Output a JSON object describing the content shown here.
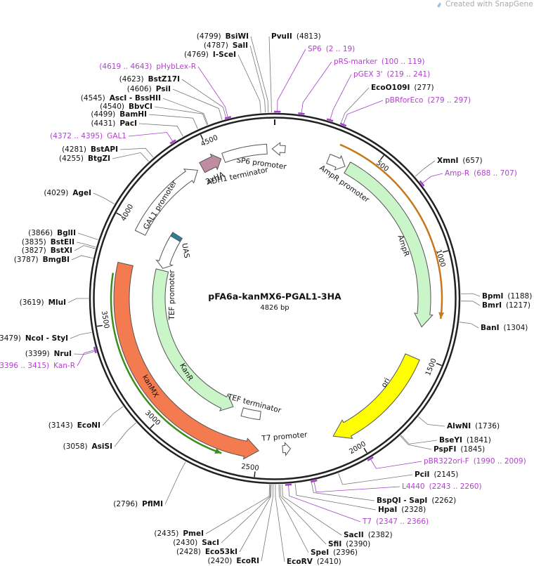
{
  "watermark": "Created with SnapGene®",
  "title": "pFA6a-kanMX6-PGAL1-3HA",
  "size": "4826 bp",
  "sites": [
    {
      "name": "BsiWI",
      "position": "(4799)"
    },
    {
      "name": "SalI",
      "position": "(4787)"
    },
    {
      "name": "I-SceI",
      "position": "(4769)"
    },
    {
      "name": "BstZ17I",
      "position": "(4623)"
    },
    {
      "name": "PsiI",
      "position": "(4606)"
    },
    {
      "name": "AscI - BssHII",
      "position": "(4545)"
    },
    {
      "name": "BbvCI",
      "position": "(4540)"
    },
    {
      "name": "BamHI",
      "position": "(4499)"
    },
    {
      "name": "PacI",
      "position": "(4431)"
    },
    {
      "name": "BstAPI",
      "position": "(4281)"
    },
    {
      "name": "BtgZI",
      "position": "(4255)"
    },
    {
      "name": "AgeI",
      "position": "(4029)"
    },
    {
      "name": "BglII",
      "position": "(3866)"
    },
    {
      "name": "BstEII",
      "position": "(3835)"
    },
    {
      "name": "BstXI",
      "position": "(3827)"
    },
    {
      "name": "BmgBI",
      "position": "(3787)"
    },
    {
      "name": "MluI",
      "position": "(3619)"
    },
    {
      "name": "NcoI - StyI",
      "position": "(3479)"
    },
    {
      "name": "NruI",
      "position": "(3399)"
    },
    {
      "name": "EcoNI",
      "position": "(3143)"
    },
    {
      "name": "AsiSI",
      "position": "(3058)"
    },
    {
      "name": "PflMI",
      "position": "(2796)"
    },
    {
      "name": "PmeI",
      "position": "(2435)"
    },
    {
      "name": "SacI",
      "position": "(2430)"
    },
    {
      "name": "Eco53kI",
      "position": "(2428)"
    },
    {
      "name": "EcoRI",
      "position": "(2420)"
    },
    {
      "name": "PvuII",
      "position": "(4813)"
    },
    {
      "name": "EcoO109I",
      "position": "(277)"
    },
    {
      "name": "XmnI",
      "position": "(657)"
    },
    {
      "name": "BpmI",
      "position": "(1188)"
    },
    {
      "name": "BmrI",
      "position": "(1217)"
    },
    {
      "name": "BanI",
      "position": "(1304)"
    },
    {
      "name": "AlwNI",
      "position": "(1736)"
    },
    {
      "name": "BseYI",
      "position": "(1841)"
    },
    {
      "name": "PspFI",
      "position": "(1845)"
    },
    {
      "name": "PciI",
      "position": "(2145)"
    },
    {
      "name": "BspQI - SapI",
      "position": "(2262)"
    },
    {
      "name": "HpaI",
      "position": "(2328)"
    },
    {
      "name": "SacII",
      "position": "(2382)"
    },
    {
      "name": "SfiI",
      "position": "(2390)"
    },
    {
      "name": "SpeI",
      "position": "(2396)"
    },
    {
      "name": "EcoRV",
      "position": "(2410)"
    }
  ],
  "primers": [
    {
      "name": "pHybLex-R",
      "range": "(4619 .. 4643)"
    },
    {
      "name": "GAL1",
      "range": "(4372 .. 4395)"
    },
    {
      "name": "Kan-R",
      "range": "(3396 .. 3415)"
    },
    {
      "name": "SP6",
      "range": "(2 .. 19)"
    },
    {
      "name": "pRS-marker",
      "range": "(100 .. 119)"
    },
    {
      "name": "pGEX 3'",
      "range": "(219 .. 241)"
    },
    {
      "name": "pBRforEco",
      "range": "(279 .. 297)"
    },
    {
      "name": "Amp-R",
      "range": "(688 .. 707)"
    },
    {
      "name": "pBR322ori-F",
      "range": "(1990 .. 2009)"
    },
    {
      "name": "L4440",
      "range": "(2243 .. 2260)"
    },
    {
      "name": "T7",
      "range": "(2347 .. 2366)"
    }
  ],
  "features": [
    "SP6 promoter",
    "ADH1 terminator",
    "3xHA",
    "GAL1 promoter",
    "UAS",
    "TEF promoter",
    "KanR",
    "kanMX",
    "TEF terminator",
    "T7 promoter",
    "AmpR promoter",
    "AmpR",
    "ori"
  ],
  "ruler": [
    500,
    1000,
    1500,
    2000,
    2500,
    3000,
    3500,
    4000,
    4500
  ]
}
